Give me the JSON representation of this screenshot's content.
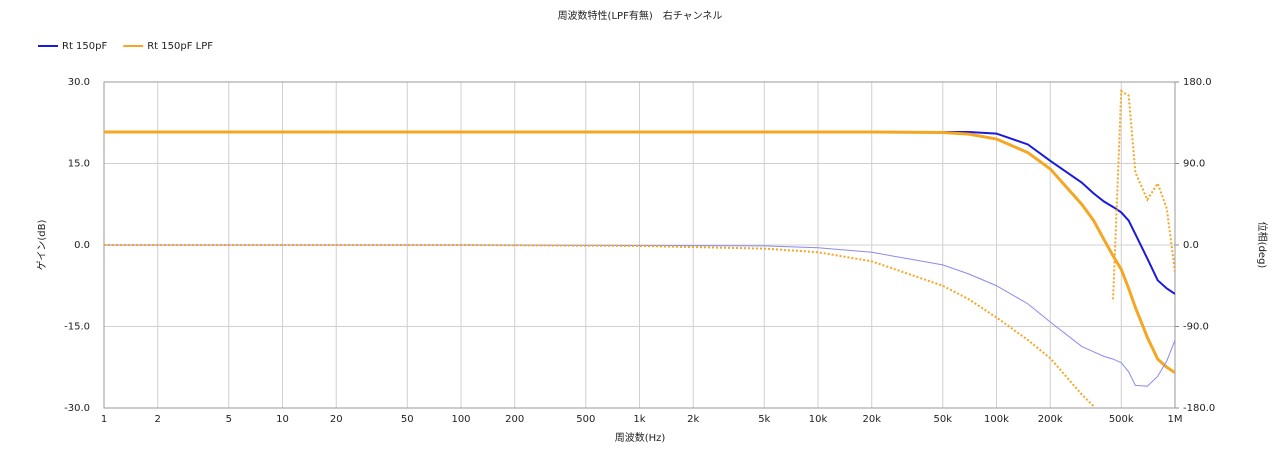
{
  "chart_data": {
    "type": "line",
    "title": "周波数特性(LPF有無)　右チャンネル",
    "x_label": "周波数(Hz)",
    "y_label": "ゲイン(dB)",
    "y2_label": "位相(deg)",
    "x": [
      1,
      10,
      100,
      1000,
      5000,
      10000,
      20000,
      50000,
      70000,
      100000,
      150000,
      200000,
      300000,
      350000,
      400000,
      450000,
      500000,
      550000,
      600000,
      700000,
      800000,
      900000,
      1000000
    ],
    "series": [
      {
        "name": "Rt 150pF",
        "color": "#1a1adc",
        "width": 2,
        "values": [
          20.8,
          20.8,
          20.8,
          20.8,
          20.8,
          20.8,
          20.8,
          20.8,
          20.8,
          20.5,
          18.5,
          15.5,
          11.5,
          9.5,
          8,
          7,
          6,
          4.5,
          2,
          -2.5,
          -6.5,
          -8,
          -9
        ]
      },
      {
        "name": "Rt 150pF LPF",
        "color": "#f5a623",
        "width": 3,
        "values": [
          20.8,
          20.8,
          20.8,
          20.8,
          20.8,
          20.8,
          20.8,
          20.7,
          20.4,
          19.5,
          17,
          14,
          7.5,
          4.5,
          1,
          -2,
          -4.5,
          -8,
          -11.5,
          -17,
          -21,
          -22.5,
          -23.5
        ]
      },
      {
        "color": "#8a8af0",
        "width": 1,
        "axis": "y2",
        "values": [
          0,
          0,
          0,
          -0.5,
          -1,
          -3,
          -8,
          -22,
          -32,
          -45,
          -65,
          -85,
          -112,
          -118,
          -123,
          -126,
          -130,
          -140,
          -155,
          -156,
          -145,
          -128,
          -105
        ]
      },
      {
        "color": "#f5a623",
        "width": 2,
        "dash": "2,2",
        "axis": "y2",
        "values": [
          0,
          0,
          0,
          -1,
          -4,
          -8,
          -18,
          -45,
          -60,
          -80,
          -105,
          -125,
          -165,
          -178,
          null,
          -60,
          170,
          165,
          80,
          50,
          68,
          40,
          -30
        ]
      }
    ],
    "log_x": true,
    "grid": true,
    "legend": "top-left",
    "xlim": [
      1,
      1000000
    ],
    "xticks": [
      1,
      2,
      5,
      10,
      20,
      50,
      100,
      200,
      500,
      {
        "value": 1000,
        "label": "1k"
      },
      {
        "value": 2000,
        "label": "2k"
      },
      {
        "value": 5000,
        "label": "5k"
      },
      {
        "value": 10000,
        "label": "10k"
      },
      {
        "value": 20000,
        "label": "20k"
      },
      {
        "value": 50000,
        "label": "50k"
      },
      {
        "value": 100000,
        "label": "100k"
      },
      {
        "value": 200000,
        "label": "200k"
      },
      {
        "value": 500000,
        "label": "500k"
      },
      {
        "value": 1000000,
        "label": "1M"
      }
    ],
    "ylim": [
      -30,
      30
    ],
    "yticks": [
      {
        "value": -30,
        "label": "-30.0"
      },
      {
        "value": -15,
        "label": "-15.0"
      },
      {
        "value": 0,
        "label": "0.0"
      },
      {
        "value": 15,
        "label": "15.0"
      },
      {
        "value": 30,
        "label": "30.0"
      }
    ],
    "y2lim": [
      -180,
      180
    ],
    "y2ticks": [
      {
        "value": -180,
        "label": "-180.0"
      },
      {
        "value": -90,
        "label": "-90.0"
      },
      {
        "value": 0,
        "label": "0.0"
      },
      {
        "value": 90,
        "label": "90.0"
      },
      {
        "value": 180,
        "label": "180.0"
      }
    ]
  }
}
